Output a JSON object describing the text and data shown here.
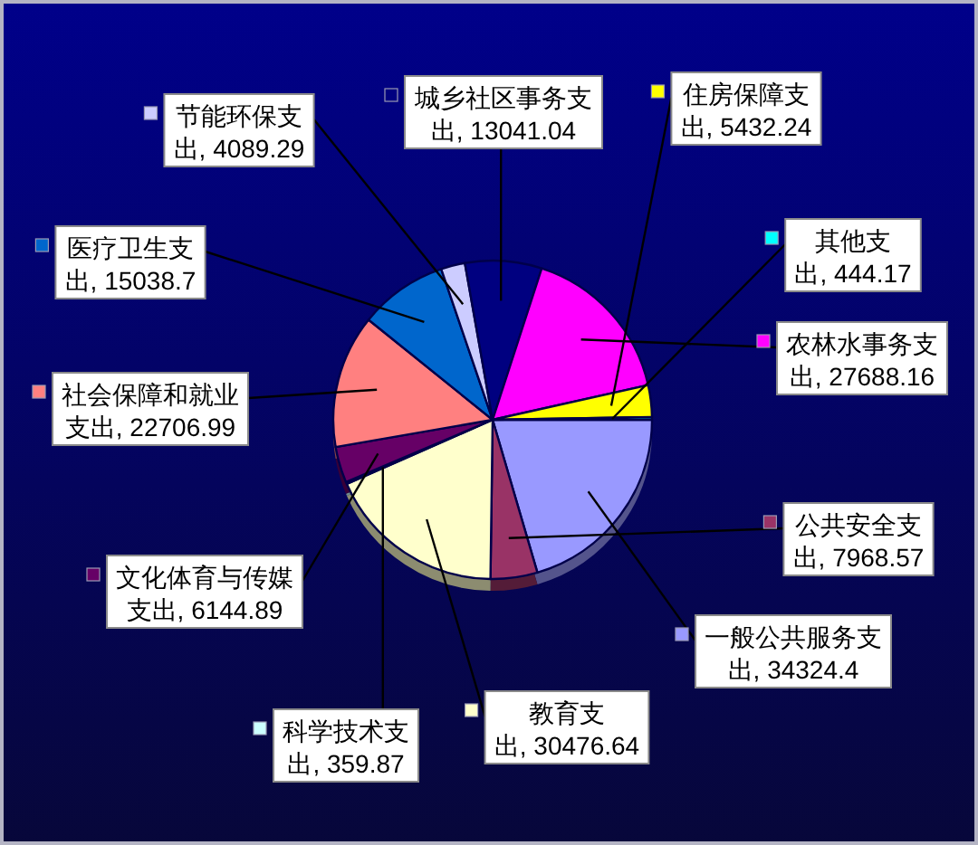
{
  "chart_data": {
    "type": "pie",
    "categories": [
      "一般公共服务支出",
      "公共安全支出",
      "教育支出",
      "科学技术支出",
      "文化体育与传媒支出",
      "社会保障和就业支出",
      "医疗卫生支出",
      "节能环保支出",
      "城乡社区事务支出",
      "农林水事务支出",
      "住房保障支出",
      "其他支出"
    ],
    "values": [
      34324.4,
      7968.57,
      30476.64,
      359.87,
      6144.89,
      22706.99,
      15038.7,
      4089.29,
      13041.04,
      27688.16,
      5432.24,
      444.17
    ],
    "colors": [
      "#9999ff",
      "#993366",
      "#ffffcc",
      "#ccffff",
      "#660066",
      "#ff8080",
      "#0066cc",
      "#ccccff",
      "#000080",
      "#ff00ff",
      "#ffff00",
      "#00ffff"
    ],
    "data_labels": true,
    "value_labels": [
      ", 34324.4",
      ", 7968.57",
      ", 30476.64",
      ", 359.87",
      ", 6144.89",
      ", 22706.99",
      ", 15038.7",
      ", 4089.29",
      ", 13041.04",
      ", 27688.16",
      ", 5432.24",
      ", 444.17"
    ],
    "legend": "bottom left"
  }
}
